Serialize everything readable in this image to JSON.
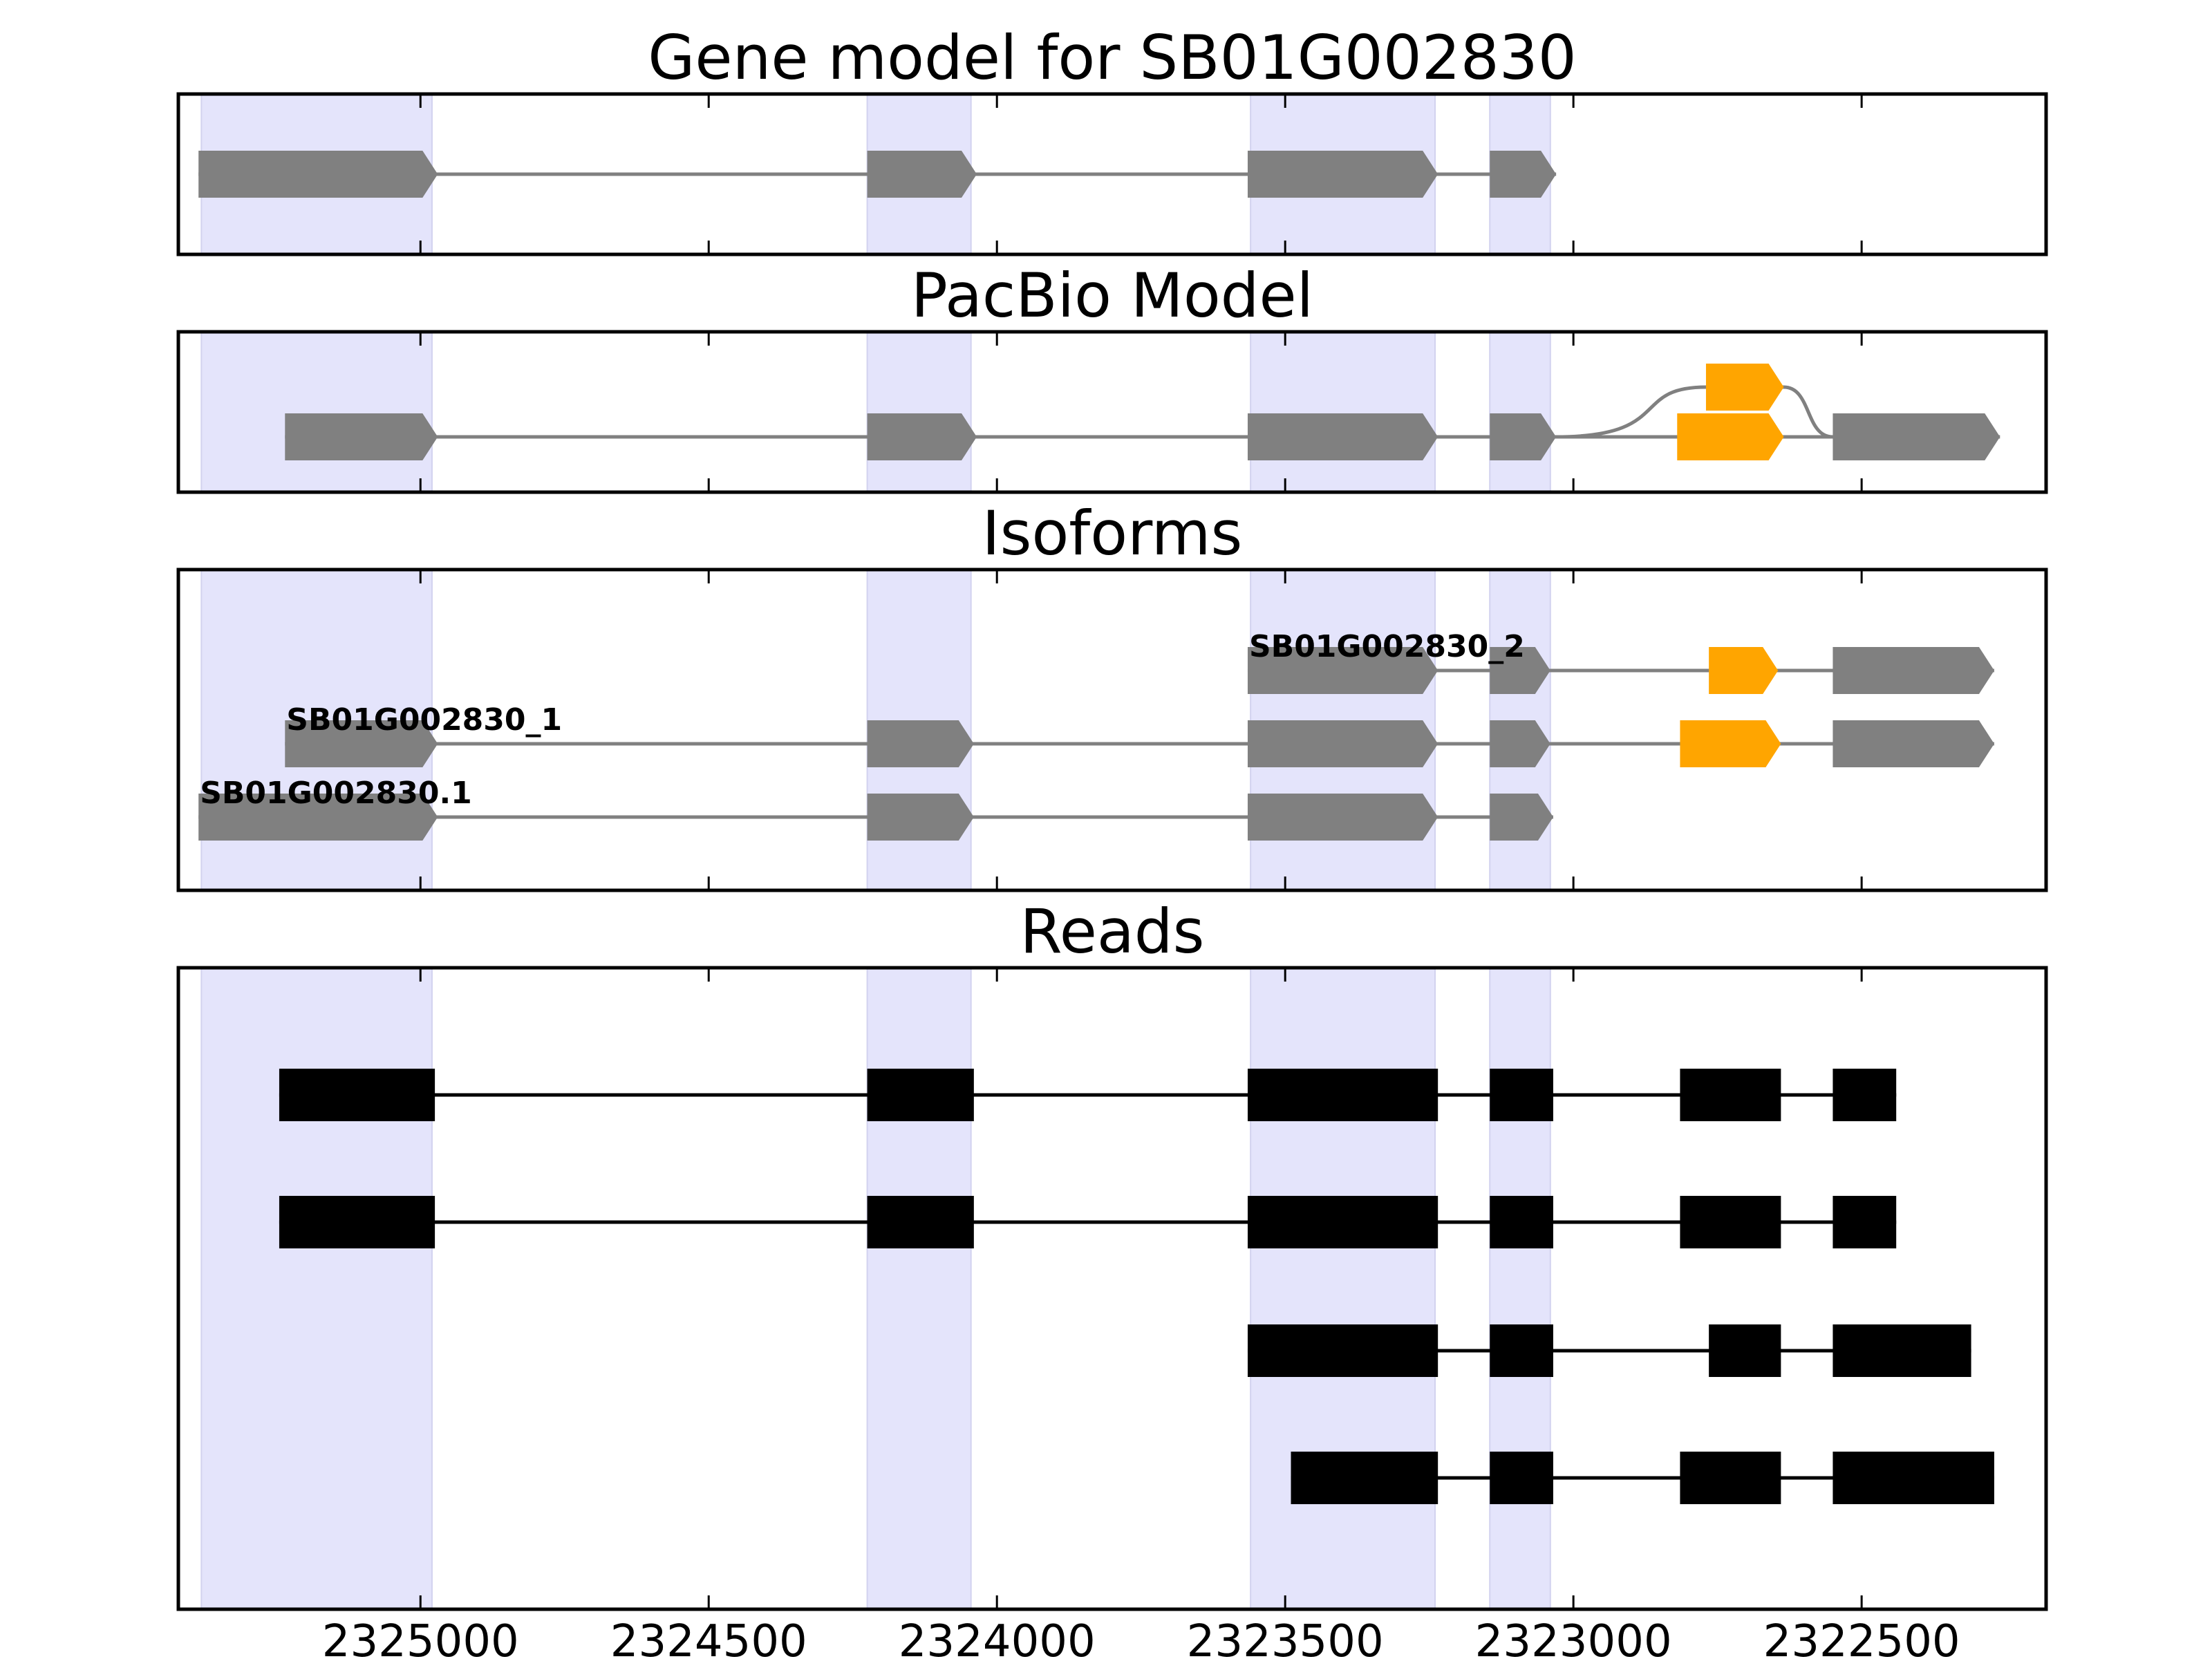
{
  "chart_data": {
    "type": "gene-track",
    "x_axis": {
      "reversed": true,
      "xlim": [
        2325420,
        2322180
      ],
      "ticks": [
        2325000,
        2324500,
        2324000,
        2323500,
        2323000,
        2322500
      ],
      "tick_labels": [
        "2325000",
        "2324500",
        "2324000",
        "2323500",
        "2323000",
        "2322500"
      ]
    },
    "colors": {
      "exon": "#808080",
      "highlight_exon": "#ffa500",
      "intron": "#808080",
      "read": "#000000",
      "shade": "#e4e4fb"
    },
    "shaded_exon_regions": [
      [
        2325380,
        2324980
      ],
      [
        2324225,
        2324045
      ],
      [
        2323560,
        2323240
      ],
      [
        2323145,
        2323040
      ]
    ],
    "panels": [
      {
        "title": "Gene model for SB01G002830",
        "tracks": [
          {
            "label": "",
            "exons": [
              {
                "start": 2325385,
                "end": 2324970,
                "color": "exon"
              },
              {
                "start": 2324225,
                "end": 2324035,
                "color": "exon"
              },
              {
                "start": 2323565,
                "end": 2323235,
                "color": "exon"
              },
              {
                "start": 2323145,
                "end": 2323030,
                "color": "exon"
              }
            ]
          }
        ]
      },
      {
        "title": "PacBio Model",
        "tracks": [
          {
            "label": "",
            "exons": [
              {
                "start": 2325235,
                "end": 2324970,
                "color": "exon"
              },
              {
                "start": 2324225,
                "end": 2324035,
                "color": "exon"
              },
              {
                "start": 2323565,
                "end": 2323235,
                "color": "exon"
              },
              {
                "start": 2323145,
                "end": 2323030,
                "color": "exon"
              },
              {
                "start": 2322820,
                "end": 2322635,
                "color": "highlight_exon"
              },
              {
                "start": 2322550,
                "end": 2322260,
                "color": "exon"
              }
            ]
          },
          {
            "label": "",
            "branch_from": 2323030,
            "branch_to": 2322550,
            "exons": [
              {
                "start": 2322770,
                "end": 2322635,
                "color": "highlight_exon"
              }
            ]
          }
        ]
      },
      {
        "title": "Isoforms",
        "tracks": [
          {
            "label": "SB01G002830_2",
            "exons": [
              {
                "start": 2323565,
                "end": 2323235,
                "color": "exon"
              },
              {
                "start": 2323145,
                "end": 2323040,
                "color": "exon"
              },
              {
                "start": 2322765,
                "end": 2322645,
                "color": "highlight_exon"
              },
              {
                "start": 2322550,
                "end": 2322270,
                "color": "exon"
              }
            ]
          },
          {
            "label": "SB01G002830_1",
            "exons": [
              {
                "start": 2325235,
                "end": 2324970,
                "color": "exon"
              },
              {
                "start": 2324225,
                "end": 2324040,
                "color": "exon"
              },
              {
                "start": 2323565,
                "end": 2323235,
                "color": "exon"
              },
              {
                "start": 2323145,
                "end": 2323040,
                "color": "exon"
              },
              {
                "start": 2322815,
                "end": 2322640,
                "color": "highlight_exon"
              },
              {
                "start": 2322550,
                "end": 2322270,
                "color": "exon"
              }
            ]
          },
          {
            "label": "SB01G002830.1",
            "exons": [
              {
                "start": 2325385,
                "end": 2324970,
                "color": "exon"
              },
              {
                "start": 2324225,
                "end": 2324040,
                "color": "exon"
              },
              {
                "start": 2323565,
                "end": 2323235,
                "color": "exon"
              },
              {
                "start": 2323145,
                "end": 2323035,
                "color": "exon"
              }
            ]
          }
        ]
      },
      {
        "title": "Reads",
        "tracks": [
          {
            "label": "",
            "exons": [
              {
                "start": 2325245,
                "end": 2324975,
                "color": "read"
              },
              {
                "start": 2324225,
                "end": 2324040,
                "color": "read"
              },
              {
                "start": 2323565,
                "end": 2323235,
                "color": "read"
              },
              {
                "start": 2323145,
                "end": 2323035,
                "color": "read"
              },
              {
                "start": 2322815,
                "end": 2322640,
                "color": "read"
              },
              {
                "start": 2322550,
                "end": 2322440,
                "color": "read"
              }
            ]
          },
          {
            "label": "",
            "exons": [
              {
                "start": 2325245,
                "end": 2324975,
                "color": "read"
              },
              {
                "start": 2324225,
                "end": 2324040,
                "color": "read"
              },
              {
                "start": 2323565,
                "end": 2323235,
                "color": "read"
              },
              {
                "start": 2323145,
                "end": 2323035,
                "color": "read"
              },
              {
                "start": 2322815,
                "end": 2322640,
                "color": "read"
              },
              {
                "start": 2322550,
                "end": 2322440,
                "color": "read"
              }
            ]
          },
          {
            "label": "",
            "exons": [
              {
                "start": 2323565,
                "end": 2323235,
                "color": "read"
              },
              {
                "start": 2323145,
                "end": 2323035,
                "color": "read"
              },
              {
                "start": 2322765,
                "end": 2322640,
                "color": "read"
              },
              {
                "start": 2322550,
                "end": 2322310,
                "color": "read"
              }
            ]
          },
          {
            "label": "",
            "exons": [
              {
                "start": 2323490,
                "end": 2323235,
                "color": "read"
              },
              {
                "start": 2323145,
                "end": 2323035,
                "color": "read"
              },
              {
                "start": 2322815,
                "end": 2322640,
                "color": "read"
              },
              {
                "start": 2322550,
                "end": 2322270,
                "color": "read"
              }
            ]
          }
        ]
      }
    ]
  }
}
